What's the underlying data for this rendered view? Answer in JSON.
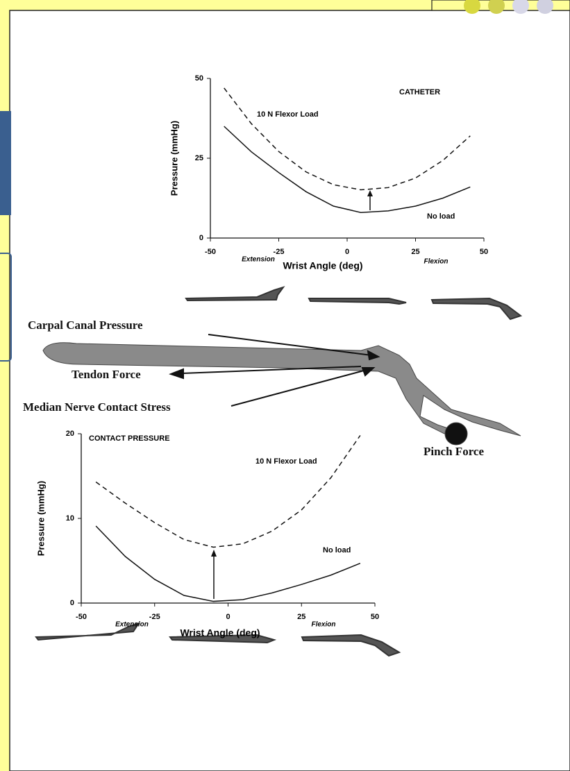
{
  "chart_data": [
    {
      "type": "line",
      "title": "CATHETER",
      "x_label": "Wrist Angle (deg)",
      "y_label": "Pressure (mmHg)",
      "annotations": [
        "Extension",
        "Flexion"
      ],
      "xlim": [
        -50,
        50
      ],
      "xticks": [
        -50,
        -25,
        0,
        25,
        50
      ],
      "ylim": [
        0,
        50
      ],
      "yticks": [
        0,
        25,
        50
      ],
      "x": [
        -45,
        -35,
        -25,
        -15,
        -5,
        5,
        15,
        25,
        35,
        45
      ],
      "series": [
        {
          "name": "10 N Flexor Load",
          "color": "#111111",
          "line_style": "dashed",
          "values": [
            47,
            35.8,
            27.1,
            20.7,
            16.7,
            15.1,
            15.8,
            18.8,
            24.3,
            32
          ]
        },
        {
          "name": "No load",
          "color": "#111111",
          "line_style": "solid",
          "values": [
            35,
            27,
            20.5,
            14.5,
            10,
            8,
            8.5,
            10,
            12.5,
            16
          ]
        }
      ]
    },
    {
      "type": "line",
      "title": "CONTACT PRESSURE",
      "x_label": "Wrist Angle (deg)",
      "y_label": "Pressure (mmHg)",
      "annotations": [
        "Extension",
        "Flexion"
      ],
      "xlim": [
        -50,
        50
      ],
      "xticks": [
        -50,
        -25,
        0,
        25,
        50
      ],
      "ylim": [
        0,
        20
      ],
      "yticks": [
        0,
        10,
        20
      ],
      "x": [
        -45,
        -35,
        -25,
        -15,
        -5,
        5,
        15,
        25,
        35,
        45
      ],
      "series": [
        {
          "name": "10 N Flexor Load",
          "color": "#111111",
          "line_style": "dashed",
          "values": [
            14.3,
            11.8,
            9.5,
            7.5,
            6.6,
            7.0,
            8.5,
            11,
            14.8,
            19.8
          ]
        },
        {
          "name": "No load",
          "color": "#111111",
          "line_style": "solid",
          "values": [
            9.1,
            5.5,
            2.8,
            0.9,
            0.2,
            0.4,
            1.2,
            2.2,
            3.3,
            4.7
          ]
        }
      ]
    }
  ],
  "diagram": {
    "labels": [
      "Carpal Canal Pressure",
      "Tendon Force",
      "Median Nerve Contact Stress",
      "Pinch Force"
    ]
  }
}
